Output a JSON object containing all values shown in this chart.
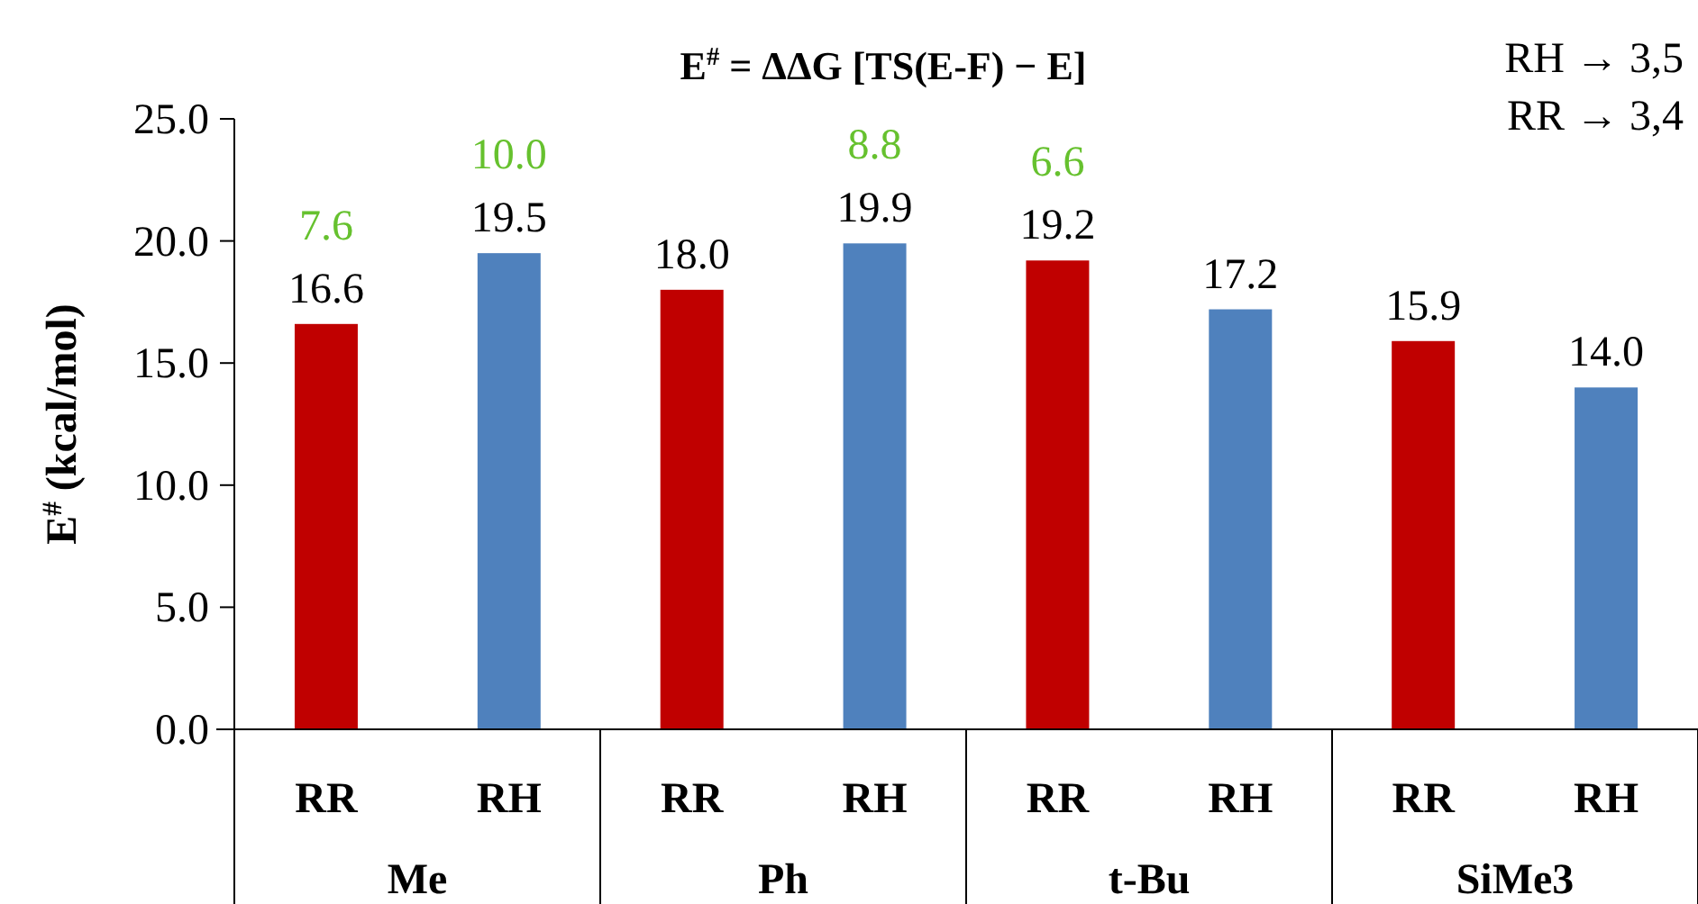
{
  "chart_data": {
    "type": "bar",
    "title": "E$^{#}$ = ΔΔG [TS(E-F) − E]",
    "ylabel": "E$^{#}$ (kcal/mol)",
    "categories": [
      "RR",
      "RH",
      "RR",
      "RH",
      "RR",
      "RH",
      "RR",
      "RH"
    ],
    "values": [
      16.6,
      19.5,
      18.0,
      19.9,
      19.2,
      17.2,
      15.9,
      14.0
    ],
    "colors": [
      "#c00000",
      "#4f81bd",
      "#c00000",
      "#4f81bd",
      "#c00000",
      "#4f81bd",
      "#c00000",
      "#4f81bd"
    ],
    "value_labels": [
      "16.6",
      "19.5",
      "18.0",
      "19.9",
      "19.2",
      "17.2",
      "15.9",
      "14.0"
    ],
    "ylim": [
      0,
      25
    ],
    "yticks": [
      {
        "value": 0,
        "label": "0.0"
      },
      {
        "value": 5,
        "label": "5.0"
      },
      {
        "value": 10,
        "label": "10.0"
      },
      {
        "value": 15,
        "label": "15.0"
      },
      {
        "value": 20,
        "label": "20.0"
      },
      {
        "value": 25,
        "label": "25.0"
      }
    ],
    "annotations": [
      "Me",
      "Ph",
      "t-Bu",
      "SiMe3",
      "7.6",
      "10.0",
      "8.8",
      "6.6",
      "RH → 3,5",
      "RR → 3,4"
    ],
    "grid": false
  }
}
